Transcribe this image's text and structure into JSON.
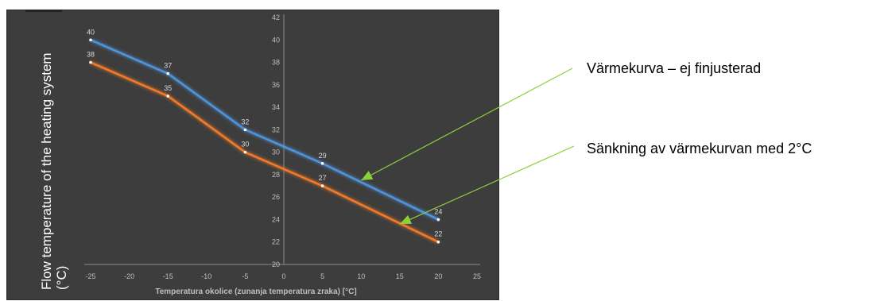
{
  "chart_data": {
    "type": "line",
    "xlabel": "Temperatura okolice (zunanja temperatura zraka) [°C]",
    "ylabel": "Flow temperature of the heating system (°C)",
    "xlim": [
      -25,
      25
    ],
    "ylim": [
      20,
      42
    ],
    "x_ticks": [
      -25,
      -20,
      -15,
      -10,
      -5,
      0,
      5,
      10,
      15,
      20,
      25
    ],
    "y_ticks": [
      20,
      22,
      24,
      26,
      28,
      30,
      32,
      34,
      36,
      38,
      40,
      42
    ],
    "grid": false,
    "series": [
      {
        "x": [
          -25,
          -15,
          -5,
          5,
          20
        ],
        "values": [
          40,
          37,
          32,
          29,
          24
        ],
        "color": "#4f93d9"
      },
      {
        "x": [
          -25,
          -15,
          -5,
          5,
          20
        ],
        "values": [
          38,
          35,
          30,
          27,
          22
        ],
        "color": "#f07a2a"
      }
    ],
    "annotations": [
      {
        "text": "Värmekurva – ej finjusterad",
        "points_to_series": 0,
        "x": 10,
        "y": 27.5
      },
      {
        "text": "Sänkning av värmekurvan med 2°C",
        "points_to_series": 1,
        "x": 15,
        "y": 23.6
      }
    ],
    "arrow_color": "#8ccf3c"
  }
}
